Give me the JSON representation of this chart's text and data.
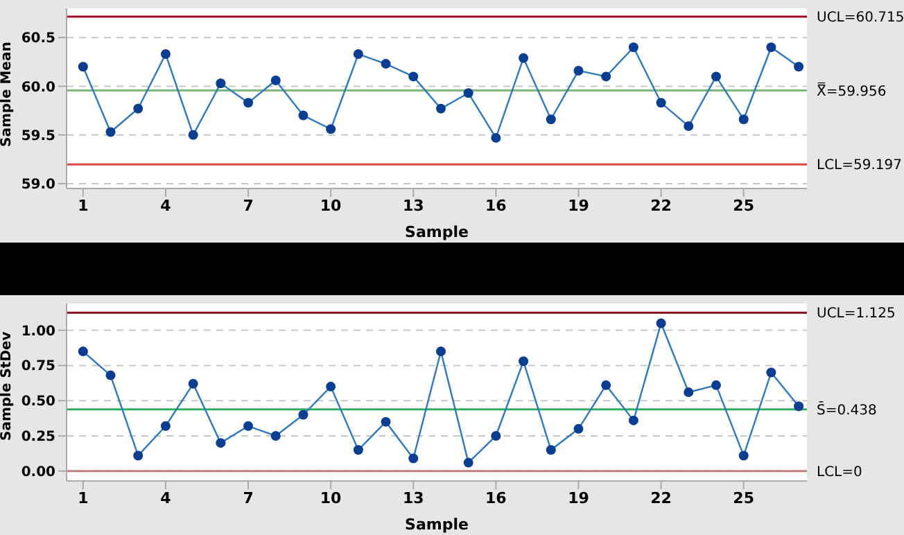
{
  "chart_data": [
    {
      "type": "line",
      "xlabel": "Sample",
      "ylabel": "Sample Mean",
      "x": [
        1,
        2,
        3,
        4,
        5,
        6,
        7,
        8,
        9,
        10,
        11,
        12,
        13,
        14,
        15,
        16,
        17,
        18,
        19,
        20,
        21,
        22,
        23,
        24,
        25,
        26,
        27
      ],
      "series": [
        {
          "color": "#2f78c0",
          "values": [
            60.2,
            59.53,
            59.77,
            60.33,
            59.5,
            60.03,
            59.83,
            60.06,
            59.7,
            59.56,
            60.33,
            60.23,
            60.1,
            59.77,
            59.93,
            59.47,
            60.29,
            59.66,
            60.16,
            60.1,
            60.4,
            59.83,
            59.59,
            60.1,
            59.66,
            60.4,
            60.2
          ]
        }
      ],
      "xlim": [
        0.4,
        27.3
      ],
      "xticks": [
        1,
        4,
        7,
        10,
        13,
        16,
        19,
        22,
        25
      ],
      "ylim": [
        58.95,
        60.8
      ],
      "yticks": [
        {
          "value": 59,
          "label": "59.0"
        },
        59.5,
        {
          "value": 60,
          "label": "60.0"
        },
        60.5
      ],
      "ref_lines": [
        {
          "axis": "y",
          "value": 60.715,
          "label": "UCL=60.715",
          "color": "#a01020"
        },
        {
          "axis": "y",
          "value": 59.956,
          "label": "X̿=59.956",
          "color": "#7fb87f"
        },
        {
          "axis": "y",
          "value": 59.197,
          "label": "LCL=59.197",
          "color": "#e04848"
        }
      ],
      "grid": "y",
      "marker": "circle",
      "line_style": "solid",
      "legend": false
    },
    {
      "type": "line",
      "xlabel": "Sample",
      "ylabel": "Sample StDev",
      "x": [
        1,
        2,
        3,
        4,
        5,
        6,
        7,
        8,
        9,
        10,
        11,
        12,
        13,
        14,
        15,
        16,
        17,
        18,
        19,
        20,
        21,
        22,
        23,
        24,
        25,
        26,
        27
      ],
      "series": [
        {
          "color": "#2f78c0",
          "values": [
            0.85,
            0.68,
            0.11,
            0.32,
            0.62,
            0.2,
            0.32,
            0.25,
            0.4,
            0.6,
            0.15,
            0.35,
            0.09,
            0.85,
            0.06,
            0.25,
            0.78,
            0.15,
            0.3,
            0.61,
            0.36,
            1.05,
            0.56,
            0.61,
            0.11,
            0.7,
            0.46
          ]
        }
      ],
      "xlim": [
        0.4,
        27.3
      ],
      "xticks": [
        1,
        4,
        7,
        10,
        13,
        16,
        19,
        22,
        25
      ],
      "ylim": [
        -0.07,
        1.19
      ],
      "yticks": [
        {
          "value": 0,
          "label": "0.00"
        },
        {
          "value": 0.25,
          "label": "0.25"
        },
        {
          "value": 0.5,
          "label": "0.50"
        },
        {
          "value": 0.75,
          "label": "0.75"
        },
        {
          "value": 1,
          "label": "1.00"
        }
      ],
      "ref_lines": [
        {
          "axis": "y",
          "value": 1.125,
          "label": "UCL=1.125",
          "color": "#801020"
        },
        {
          "axis": "y",
          "value": 0.438,
          "label": "S̄=0.438",
          "color": "#30b060"
        },
        {
          "axis": "y",
          "value": 0,
          "label": "LCL=0",
          "color": "#c08080"
        }
      ],
      "grid": "y",
      "marker": "circle",
      "line_style": "solid",
      "legend": false
    }
  ]
}
